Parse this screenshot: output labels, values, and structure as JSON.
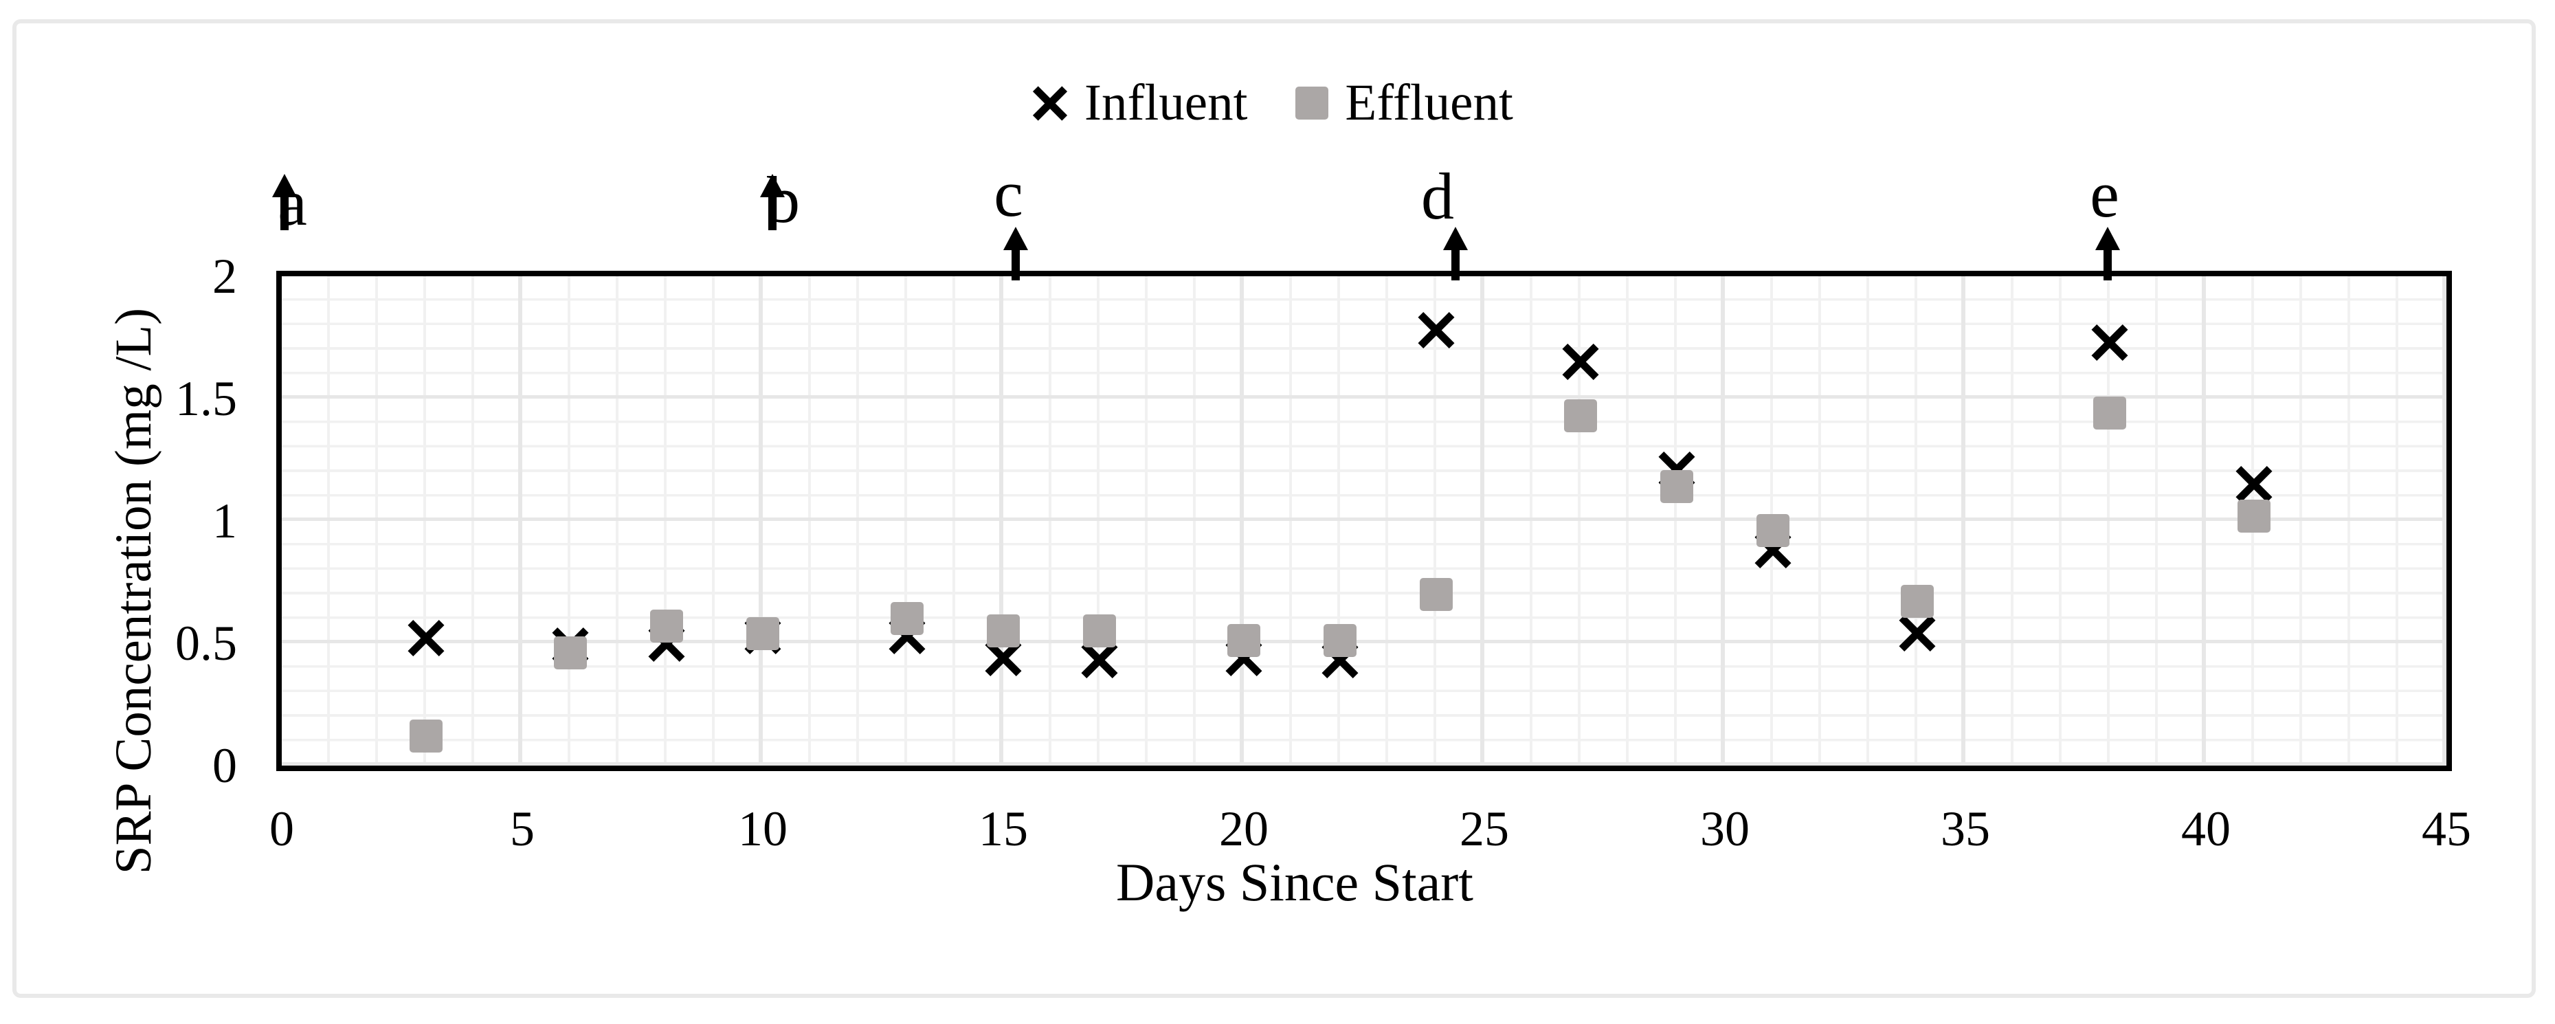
{
  "figure": {
    "background": "#ffffff",
    "frame_color": "#e9e9e9"
  },
  "legend": {
    "position": "top-center",
    "items": [
      {
        "label": "Influent",
        "marker": "x-cross-icon",
        "color": "#000000"
      },
      {
        "label": "Effluent",
        "marker": "square-icon",
        "color": "#aba7a6"
      }
    ]
  },
  "chart_data": {
    "type": "scatter",
    "title": "",
    "xlabel": "Days Since Start",
    "ylabel": "SRP Concentration (mg /L)",
    "xlim": [
      0,
      45
    ],
    "ylim": [
      0,
      2
    ],
    "x_ticks": [
      0,
      5,
      10,
      15,
      20,
      25,
      30,
      35,
      40,
      45
    ],
    "x_tick_labels": [
      "0",
      "5",
      "10",
      "15",
      "20",
      "25",
      "30",
      "35",
      "40",
      "45"
    ],
    "y_ticks": [
      0,
      0.5,
      1,
      1.5,
      2
    ],
    "y_tick_labels": [
      "0",
      "0.5",
      "1",
      "1.5",
      "2"
    ],
    "grid": {
      "on": true,
      "minor_x_step_days": 1,
      "major_x_step_days": 5,
      "minor_y_step": 0.1,
      "major_y_step": 0.5,
      "minor_color": "#f1f1f1",
      "major_color": "#e7e7e7",
      "plot_border_color": "#000000"
    },
    "legend_position": "top-center",
    "x": [
      3,
      6,
      8,
      10,
      13,
      15,
      17,
      20,
      22,
      24,
      27,
      29,
      31,
      34,
      38,
      41
    ],
    "series": [
      {
        "name": "Influent",
        "marker": "x-cross",
        "color": "#000000",
        "values": [
          0.52,
          0.49,
          0.5,
          0.53,
          0.53,
          0.44,
          0.43,
          0.44,
          0.43,
          1.78,
          1.65,
          1.21,
          0.88,
          0.54,
          1.73,
          1.15
        ]
      },
      {
        "name": "Effluent",
        "marker": "square",
        "color": "#aba7a6",
        "values": [
          0.12,
          0.46,
          0.57,
          0.54,
          0.6,
          0.55,
          0.55,
          0.51,
          0.51,
          0.7,
          1.43,
          1.14,
          0.96,
          0.67,
          1.44,
          1.02
        ]
      }
    ],
    "annotations": [
      {
        "label": "a",
        "day": 0.05,
        "arrow": "tall"
      },
      {
        "label": "b",
        "day": 10.2,
        "arrow": "tall"
      },
      {
        "label": "c",
        "day": 15.25,
        "arrow": "short"
      },
      {
        "label": "d",
        "day": 24.4,
        "arrow": "short"
      },
      {
        "label": "e",
        "day": 37.95,
        "arrow": "short"
      }
    ]
  }
}
